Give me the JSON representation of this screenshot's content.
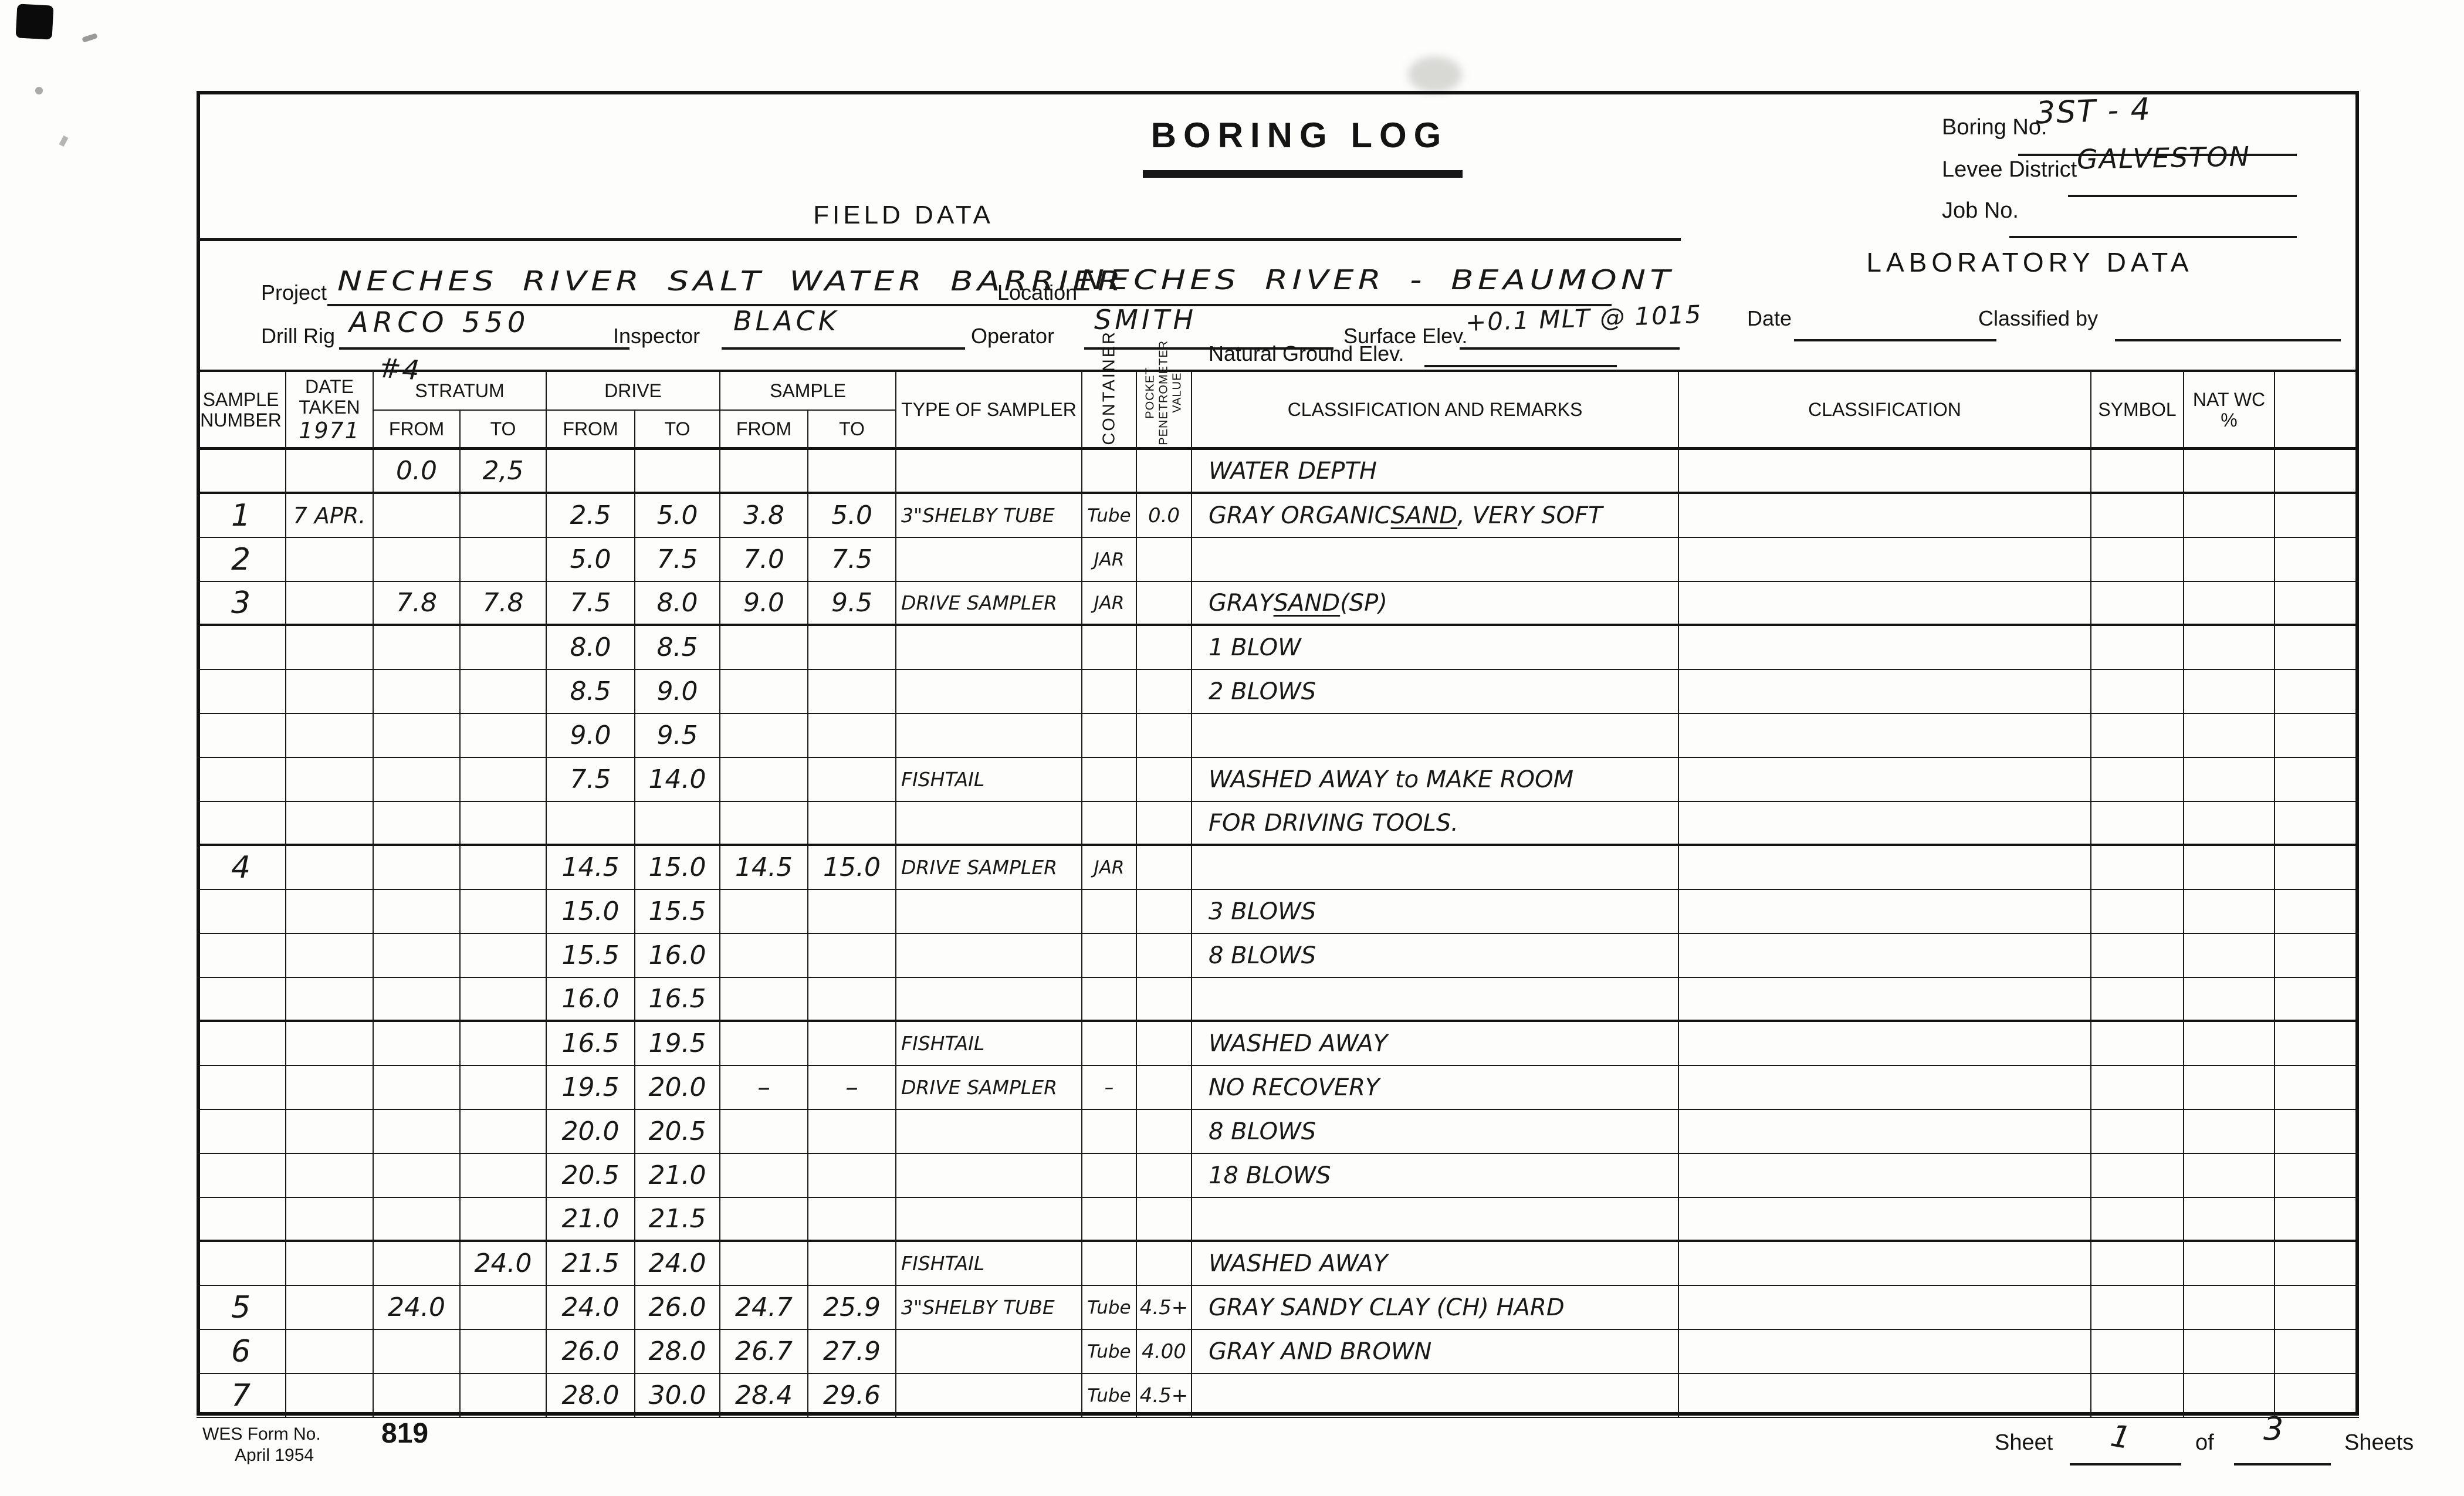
{
  "header": {
    "title": "BORING LOG",
    "boring_no_label": "Boring No.",
    "boring_no": "3ST - 4",
    "levee_district_label": "Levee District",
    "levee_district": "GALVESTON",
    "job_no_label": "Job No.",
    "job_no": "",
    "field_data_heading": "FIELD DATA",
    "laboratory_data_heading": "LABORATORY DATA",
    "project_label": "Project",
    "project": "NECHES RIVER SALT WATER BARRIER",
    "location_label": "Location",
    "location": "NECHES RIVER - BEAUMONT",
    "drill_rig_label": "Drill Rig",
    "drill_rig": "ARCO 550",
    "drill_rig_note": "#4",
    "inspector_label": "Inspector",
    "inspector": "BLACK",
    "operator_label": "Operator",
    "operator": "SMITH",
    "surface_elev_label": "Surface Elev.",
    "surface_elev": "+0.1 MLT @ 1015",
    "natural_ground_elev_label": "Natural Ground Elev.",
    "natural_ground_elev": "",
    "date_label": "Date",
    "date": "",
    "classified_by_label": "Classified by",
    "classified_by": ""
  },
  "table": {
    "columns": {
      "sample": "SAMPLE NUMBER",
      "date": "DATE TAKEN",
      "stratum": "STRATUM",
      "drive": "DRIVE",
      "sample_grp": "SAMPLE",
      "from": "FROM",
      "to": "TO",
      "sampler": "TYPE OF SAMPLER",
      "container": "CONTAINER",
      "pocket": "POCKET\nPENETROMETER\nVALUE",
      "remarks": "CLASSIFICATION AND REMARKS",
      "classification": "CLASSIFICATION",
      "symbol": "SYMBOL",
      "natwc": "NAT WC %"
    },
    "date_taken_year": "1971",
    "col_ids": [
      "sample",
      "date",
      "s_from",
      "s_to",
      "d_from",
      "d_to",
      "m_from",
      "m_to",
      "sampler",
      "container",
      "pp",
      "remarks",
      "classification",
      "symbol",
      "natwc",
      "extra"
    ],
    "rows": [
      {
        "s_from": "0.0",
        "s_to": "2,5",
        "remarks": "WATER DEPTH",
        "hb": true
      },
      {
        "sample": "1",
        "date": "7 APR.",
        "d_from": "2.5",
        "d_to": "5.0",
        "m_from": "3.8",
        "m_to": "5.0",
        "sampler": "3\"SHELBY TUBE",
        "container": "Tube",
        "pp": "0.0",
        "remarks": "GRAY ORGANIC SAND, VERY SOFT",
        "u": "SAND"
      },
      {
        "sample": "2",
        "d_from": "5.0",
        "d_to": "7.5",
        "m_from": "7.0",
        "m_to": "7.5",
        "container": "JAR"
      },
      {
        "sample": "3",
        "s_from": "7.8",
        "s_to": "7.8",
        "d_from": "7.5",
        "d_to": "8.0",
        "m_from": "9.0",
        "m_to": "9.5",
        "sampler": "DRIVE SAMPLER",
        "container": "JAR",
        "remarks": "GRAY SAND (SP)",
        "u": "SAND",
        "hb": true
      },
      {
        "d_from": "8.0",
        "d_to": "8.5",
        "remarks": "1 BLOW"
      },
      {
        "d_from": "8.5",
        "d_to": "9.0",
        "remarks": "2 BLOWS"
      },
      {
        "d_from": "9.0",
        "d_to": "9.5"
      },
      {
        "d_from": "7.5",
        "d_to": "14.0",
        "sampler": "FISHTAIL",
        "remarks": "WASHED AWAY to MAKE ROOM"
      },
      {
        "remarks": "FOR DRIVING TOOLS.",
        "hb": true
      },
      {
        "sample": "4",
        "d_from": "14.5",
        "d_to": "15.0",
        "m_from": "14.5",
        "m_to": "15.0",
        "sampler": "DRIVE SAMPLER",
        "container": "JAR"
      },
      {
        "d_from": "15.0",
        "d_to": "15.5",
        "remarks": "3 BLOWS"
      },
      {
        "d_from": "15.5",
        "d_to": "16.0",
        "remarks": "8 BLOWS"
      },
      {
        "d_from": "16.0",
        "d_to": "16.5",
        "hb": true
      },
      {
        "d_from": "16.5",
        "d_to": "19.5",
        "sampler": "FISHTAIL",
        "remarks": "WASHED AWAY"
      },
      {
        "d_from": "19.5",
        "d_to": "20.0",
        "m_from": "–",
        "m_to": "–",
        "sampler": "DRIVE SAMPLER",
        "container": "–",
        "remarks": "NO RECOVERY"
      },
      {
        "d_from": "20.0",
        "d_to": "20.5",
        "remarks": "8 BLOWS"
      },
      {
        "d_from": "20.5",
        "d_to": "21.0",
        "remarks": "18 BLOWS"
      },
      {
        "d_from": "21.0",
        "d_to": "21.5",
        "hb": true
      },
      {
        "s_to": "24.0",
        "d_from": "21.5",
        "d_to": "24.0",
        "sampler": "FISHTAIL",
        "remarks": "WASHED AWAY"
      },
      {
        "sample": "5",
        "s_from": "24.0",
        "d_from": "24.0",
        "d_to": "26.0",
        "m_from": "24.7",
        "m_to": "25.9",
        "sampler": "3\"SHELBY TUBE",
        "container": "Tube",
        "pp": "4.5+",
        "remarks": "GRAY SANDY CLAY (CH) HARD"
      },
      {
        "sample": "6",
        "d_from": "26.0",
        "d_to": "28.0",
        "m_from": "26.7",
        "m_to": "27.9",
        "container": "Tube",
        "pp": "4.00",
        "remarks": "GRAY AND BROWN"
      },
      {
        "sample": "7",
        "d_from": "28.0",
        "d_to": "30.0",
        "m_from": "28.4",
        "m_to": "29.6",
        "container": "Tube",
        "pp": "4.5+"
      }
    ]
  },
  "footer": {
    "form_no_label": "WES Form No.",
    "form_no": "819",
    "form_date": "April 1954",
    "sheet_label": "Sheet",
    "sheet_no": "1",
    "of_label": "of",
    "sheet_total": "3",
    "sheets_label": "Sheets"
  }
}
